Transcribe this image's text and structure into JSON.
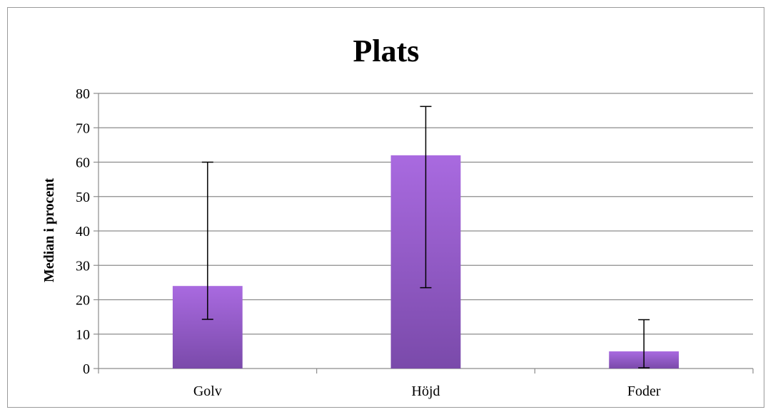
{
  "chart_data": {
    "type": "bar",
    "title": "Plats",
    "xlabel": "",
    "ylabel": "Median i procent",
    "ylim": [
      0,
      80
    ],
    "yticks": [
      0,
      10,
      20,
      30,
      40,
      50,
      60,
      70,
      80
    ],
    "categories": [
      "Golv",
      "Höjd",
      "Foder"
    ],
    "values": [
      24,
      62,
      5
    ],
    "error_low": [
      14.3,
      23.5,
      0.2
    ],
    "error_high": [
      60,
      76.2,
      14.2
    ],
    "grid": true,
    "legend": "none",
    "colors": {
      "bar_top": "#a96ae0",
      "bar_bottom": "#7a4aaa",
      "grid": "#8c8c8c",
      "error_bar": "#000000",
      "frame": "#9a9a9a"
    }
  }
}
